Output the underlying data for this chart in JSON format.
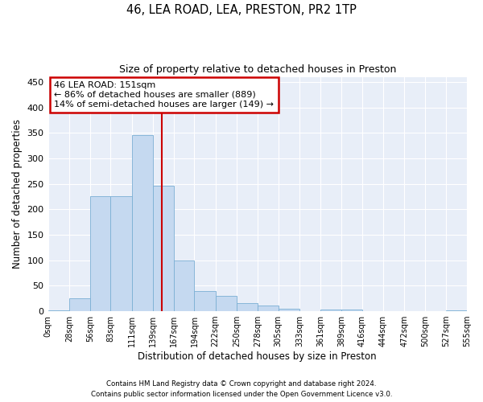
{
  "title1": "46, LEA ROAD, LEA, PRESTON, PR2 1TP",
  "title2": "Size of property relative to detached houses in Preston",
  "xlabel": "Distribution of detached houses by size in Preston",
  "ylabel": "Number of detached properties",
  "annotation_line1": "46 LEA ROAD: 151sqm",
  "annotation_line2": "← 86% of detached houses are smaller (889)",
  "annotation_line3": "14% of semi-detached houses are larger (149) →",
  "footnote1": "Contains HM Land Registry data © Crown copyright and database right 2024.",
  "footnote2": "Contains public sector information licensed under the Open Government Licence v3.0.",
  "property_size": 151,
  "bar_color": "#c5d9f0",
  "bar_edge_color": "#7bafd4",
  "vline_color": "#cc0000",
  "annotation_box_color": "#cc0000",
  "background_color": "#e8eef8",
  "bins": [
    0,
    28,
    56,
    83,
    111,
    139,
    167,
    194,
    222,
    250,
    278,
    305,
    333,
    361,
    389,
    416,
    444,
    472,
    500,
    527,
    555
  ],
  "counts": [
    2,
    26,
    226,
    226,
    345,
    246,
    100,
    40,
    30,
    16,
    11,
    5,
    0,
    4,
    4,
    0,
    0,
    0,
    0,
    2
  ],
  "ylim": [
    0,
    460
  ],
  "yticks": [
    0,
    50,
    100,
    150,
    200,
    250,
    300,
    350,
    400,
    450
  ]
}
